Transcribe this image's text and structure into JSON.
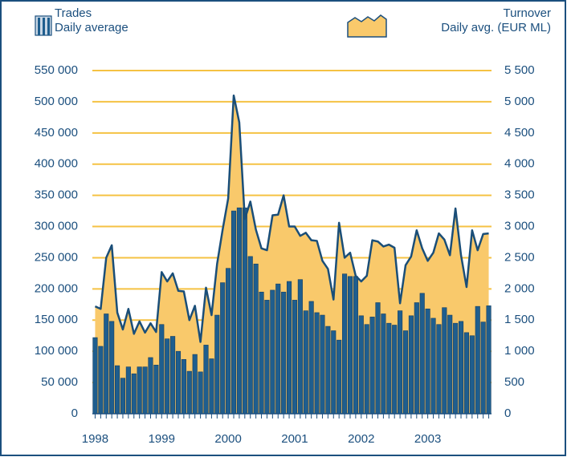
{
  "chart_data": {
    "type": "bar-area",
    "categories": [
      "1998",
      null,
      null,
      null,
      null,
      null,
      null,
      null,
      null,
      null,
      null,
      null,
      "1999",
      null,
      null,
      null,
      null,
      null,
      null,
      null,
      null,
      null,
      null,
      null,
      "2000",
      null,
      null,
      null,
      null,
      null,
      null,
      null,
      null,
      null,
      null,
      null,
      "2001",
      null,
      null,
      null,
      null,
      null,
      null,
      null,
      null,
      null,
      null,
      null,
      "2002",
      null,
      null,
      null,
      null,
      null,
      null,
      null,
      null,
      null,
      null,
      null,
      "2003",
      null,
      null,
      null,
      null,
      null,
      null,
      null,
      null,
      null,
      null,
      null
    ],
    "series": [
      {
        "name": "Trades",
        "unit": "Daily average",
        "type": "bar",
        "color": "#1f5e8e",
        "axis": "y",
        "values": [
          122000,
          108000,
          160000,
          148000,
          77000,
          57000,
          75000,
          64000,
          75000,
          75000,
          90000,
          78000,
          143000,
          120000,
          124000,
          100000,
          87000,
          68000,
          95000,
          67000,
          110000,
          88000,
          158000,
          210000,
          233000,
          325000,
          330000,
          330000,
          252000,
          240000,
          195000,
          182000,
          198000,
          208000,
          195000,
          212000,
          182000,
          215000,
          165000,
          180000,
          162000,
          158000,
          140000,
          133000,
          118000,
          224000,
          220000,
          220000,
          157000,
          143000,
          155000,
          178000,
          160000,
          145000,
          142000,
          165000,
          133000,
          157000,
          178000,
          193000,
          168000,
          153000,
          143000,
          170000,
          158000,
          145000,
          148000,
          130000,
          125000,
          172000,
          147000,
          173000
        ]
      },
      {
        "name": "Turnover",
        "unit": "Daily avg. (EUR ML)",
        "type": "area",
        "color": "#f9c96b",
        "line_color": "#1a4e78",
        "axis": "y2",
        "values": [
          1720,
          1680,
          2500,
          2700,
          1620,
          1350,
          1680,
          1280,
          1480,
          1300,
          1450,
          1310,
          2270,
          2120,
          2250,
          1970,
          1960,
          1500,
          1730,
          1150,
          2020,
          1580,
          2400,
          2950,
          3450,
          5100,
          4670,
          3120,
          3400,
          2950,
          2650,
          2620,
          3180,
          3190,
          3500,
          3000,
          3000,
          2850,
          2900,
          2780,
          2770,
          2450,
          2320,
          1830,
          3060,
          2500,
          2580,
          2210,
          2120,
          2210,
          2780,
          2760,
          2680,
          2710,
          2660,
          1770,
          2380,
          2520,
          2940,
          2650,
          2450,
          2580,
          2890,
          2790,
          2540,
          3290,
          2540,
          2030,
          2940,
          2620,
          2880,
          2890
        ]
      }
    ],
    "ylim": [
      0,
      550000
    ],
    "yticks": [
      0,
      {
        "value": 50000,
        "label": "50 000"
      },
      {
        "value": 100000,
        "label": "100 000"
      },
      {
        "value": 150000,
        "label": "150 000"
      },
      {
        "value": 200000,
        "label": "200 000"
      },
      {
        "value": 250000,
        "label": "250 000"
      },
      {
        "value": 300000,
        "label": "300 000"
      },
      {
        "value": 350000,
        "label": "350 000"
      },
      {
        "value": 400000,
        "label": "400 000"
      },
      {
        "value": 450000,
        "label": "450 000"
      },
      {
        "value": 500000,
        "label": "500 000"
      },
      {
        "value": 550000,
        "label": "550 000"
      }
    ],
    "y2lim": [
      0,
      5500
    ],
    "y2ticks": [
      0,
      500,
      {
        "value": 1000,
        "label": "1 000"
      },
      {
        "value": 1500,
        "label": "1 500"
      },
      {
        "value": 2000,
        "label": "2 000"
      },
      {
        "value": 2500,
        "label": "2 500"
      },
      {
        "value": 3000,
        "label": "3 000"
      },
      {
        "value": 3500,
        "label": "3 500"
      },
      {
        "value": 4000,
        "label": "4 000"
      },
      {
        "value": 4500,
        "label": "4 500"
      },
      {
        "value": 5000,
        "label": "5 000"
      },
      {
        "value": 5500,
        "label": "5 500"
      }
    ],
    "grid": true,
    "grid_color": "#f5c243"
  }
}
